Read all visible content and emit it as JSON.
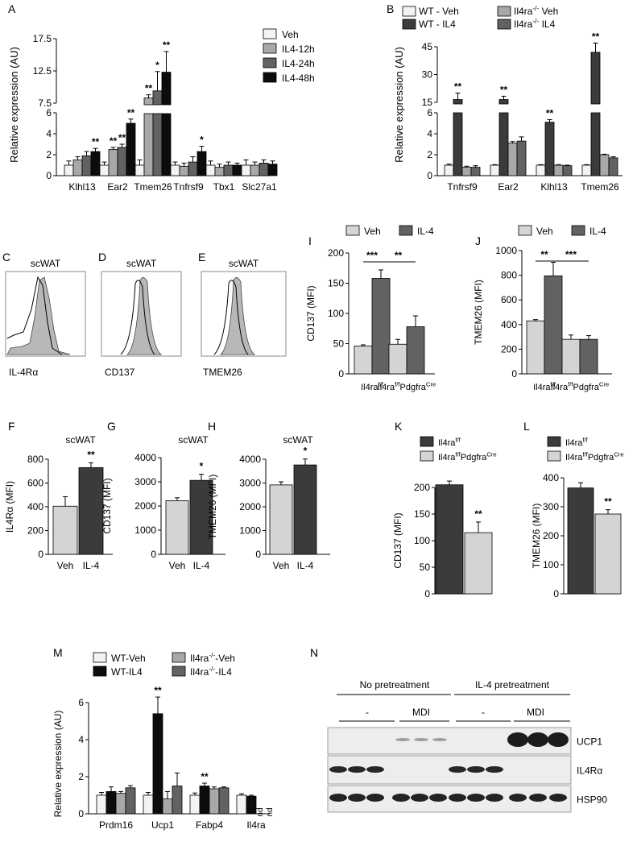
{
  "colors": {
    "white": "#f3f3f3",
    "light": "#d4d4d4",
    "mid": "#a8a8a8",
    "dark": "#626262",
    "black": "#0c0c0c",
    "darkbar": "#3b3b3b"
  },
  "chart_data": [
    {
      "id": "A",
      "type": "bar",
      "panel_label": "A",
      "ylabel": "Relative expression (AU)",
      "categories": [
        "Klhl13",
        "Ear2",
        "Tmem26",
        "Tnfrsf9",
        "Tbx1",
        "Slc27a1"
      ],
      "y_axis_break": {
        "lower_range": [
          0,
          6
        ],
        "upper_range": [
          7.5,
          17.5
        ]
      },
      "lower_ticks": [
        "0",
        "2",
        "4",
        "6"
      ],
      "upper_ticks": [
        "7.5",
        "12.5",
        "17.5"
      ],
      "legend_placement": "top-right",
      "series": [
        {
          "name": "Veh",
          "values": [
            1.0,
            1.0,
            1.0,
            1.0,
            1.0,
            1.0
          ],
          "errors": [
            0.4,
            0.3,
            0.5,
            0.3,
            0.4,
            0.5
          ]
        },
        {
          "name": "IL4-12h",
          "values": [
            1.5,
            2.5,
            8.3,
            0.9,
            0.8,
            1.0
          ],
          "errors": [
            0.3,
            0.2,
            0.5,
            0.3,
            0.3,
            0.3
          ]
        },
        {
          "name": "IL4-24h",
          "values": [
            1.9,
            2.7,
            9.4,
            1.3,
            1.0,
            1.2
          ],
          "errors": [
            0.4,
            0.3,
            3.0,
            0.5,
            0.3,
            0.3
          ]
        },
        {
          "name": "IL4-48h",
          "values": [
            2.3,
            5.0,
            12.3,
            2.3,
            1.0,
            1.1
          ],
          "errors": [
            0.3,
            0.4,
            3.2,
            0.5,
            0.2,
            0.3
          ]
        }
      ],
      "annotations": [
        {
          "category": "Klhl13",
          "series": "IL4-48h",
          "text": "**"
        },
        {
          "category": "Ear2",
          "series": "IL4-12h",
          "text": "**"
        },
        {
          "category": "Ear2",
          "series": "IL4-24h",
          "text": "**"
        },
        {
          "category": "Ear2",
          "series": "IL4-48h",
          "text": "**"
        },
        {
          "category": "Tmem26",
          "series": "IL4-12h",
          "text": "**"
        },
        {
          "category": "Tmem26",
          "series": "IL4-24h",
          "text": "*"
        },
        {
          "category": "Tmem26",
          "series": "IL4-48h",
          "text": "**"
        },
        {
          "category": "Tnfrsf9",
          "series": "IL4-48h",
          "text": "*"
        }
      ]
    },
    {
      "id": "B",
      "type": "bar",
      "panel_label": "B",
      "ylabel": "Relative expression (AU)",
      "categories": [
        "Tnfrsf9",
        "Ear2",
        "Klhl13",
        "Tmem26"
      ],
      "y_axis_break": {
        "lower_range": [
          0,
          6
        ],
        "upper_range": [
          15,
          45
        ]
      },
      "lower_ticks": [
        "0",
        "2",
        "4",
        "6"
      ],
      "upper_ticks": [
        "15",
        "30",
        "45"
      ],
      "legend_placement": "top",
      "legend_labels": [
        "WT - Veh",
        "WT - IL4",
        "Il4ra-/- Veh",
        "Il4ra-/- IL4"
      ],
      "series": [
        {
          "name": "WT - Veh",
          "values": [
            1.0,
            1.0,
            1.0,
            1.0
          ],
          "errors": [
            0.1,
            0.05,
            0.05,
            0.05
          ]
        },
        {
          "name": "WT - IL4",
          "values": [
            16.5,
            16.5,
            5.1,
            42.0
          ],
          "errors": [
            3.5,
            1.8,
            0.25,
            5.0
          ]
        },
        {
          "name": "Il4ra-/- Veh",
          "values": [
            0.8,
            3.1,
            1.0,
            2.0
          ],
          "errors": [
            0.1,
            0.15,
            0.05,
            0.05
          ]
        },
        {
          "name": "Il4ra-/- IL4",
          "values": [
            0.8,
            3.3,
            0.95,
            1.7
          ],
          "errors": [
            0.15,
            0.4,
            0.05,
            0.1
          ]
        }
      ],
      "annotations": [
        {
          "category": "Tnfrsf9",
          "series": "WT - IL4",
          "text": "**"
        },
        {
          "category": "Ear2",
          "series": "WT - IL4",
          "text": "**"
        },
        {
          "category": "Klhl13",
          "series": "WT - IL4",
          "text": "**"
        },
        {
          "category": "Tmem26",
          "series": "WT - IL4",
          "text": "**"
        }
      ]
    },
    {
      "id": "I",
      "type": "bar",
      "panel_label": "I",
      "ylabel": "CD137 (MFI)",
      "ylim": [
        0,
        200
      ],
      "ticks": [
        "0",
        "50",
        "100",
        "150",
        "200"
      ],
      "groups": [
        "Il4ra",
        "Il4raPdgfra"
      ],
      "group_labels": {
        "Il4ra": "Il4ra",
        "Il4ra_sup": "f/f",
        "Il4raPdgfra_a": "Il4ra",
        "Il4raPdgfra_sup": "f/f",
        "Il4raPdgfra_b": "Pdgfra",
        "Il4raPdgfra_sup2": "Cre"
      },
      "legend_labels": [
        "Veh",
        "IL-4"
      ],
      "series": [
        {
          "name": "Veh",
          "values": [
            46,
            49
          ],
          "errors": [
            2,
            8
          ]
        },
        {
          "name": "IL-4",
          "values": [
            158,
            78
          ],
          "errors": [
            14,
            18
          ]
        }
      ],
      "brackets": [
        {
          "text": "***"
        },
        {
          "text": "**"
        }
      ]
    },
    {
      "id": "J",
      "type": "bar",
      "panel_label": "J",
      "ylabel": "TMEM26 (MFI)",
      "ylim": [
        0,
        1000
      ],
      "ticks": [
        "0",
        "200",
        "400",
        "600",
        "800",
        "1000"
      ],
      "legend_labels": [
        "Veh",
        "IL-4"
      ],
      "series": [
        {
          "name": "Veh",
          "values": [
            430,
            280
          ],
          "errors": [
            10,
            35
          ]
        },
        {
          "name": "IL-4",
          "values": [
            795,
            280
          ],
          "errors": [
            110,
            30
          ]
        }
      ],
      "brackets": [
        {
          "text": "**"
        },
        {
          "text": "***"
        }
      ]
    },
    {
      "id": "F",
      "type": "bar",
      "panel_label": "F",
      "title": "scWAT",
      "ylabel": "IL4Rα (MFI)",
      "ylim": [
        0,
        800
      ],
      "ticks": [
        "0",
        "200",
        "400",
        "600",
        "800"
      ],
      "categories": [
        "Veh",
        "IL-4"
      ],
      "values": [
        405,
        730
      ],
      "errors": [
        80,
        40
      ],
      "sig": "**"
    },
    {
      "id": "G",
      "type": "bar",
      "panel_label": "G",
      "title": "scWAT",
      "ylabel": "CD137 (MFI)",
      "ylim": [
        0,
        4000
      ],
      "ticks": [
        "0",
        "1000",
        "2000",
        "3000",
        "4000"
      ],
      "categories": [
        "Veh",
        "IL-4"
      ],
      "values": [
        2220,
        3060
      ],
      "errors": [
        120,
        250
      ],
      "sig": "*"
    },
    {
      "id": "H",
      "type": "bar",
      "panel_label": "H",
      "title": "scWAT",
      "ylabel": "TMEM26 (MFI)",
      "ylim": [
        0,
        4000
      ],
      "ticks": [
        "0",
        "1000",
        "2000",
        "3000",
        "4000"
      ],
      "categories": [
        "Veh",
        "IL-4"
      ],
      "values": [
        2920,
        3760
      ],
      "errors": [
        130,
        250
      ],
      "sig": "*"
    },
    {
      "id": "K",
      "type": "bar",
      "panel_label": "K",
      "ylabel": "CD137 (MFI)",
      "ylim": [
        0,
        200
      ],
      "ticks": [
        "0",
        "50",
        "100",
        "150",
        "200"
      ],
      "legend_labels": [
        "Il4ra",
        "Il4raPdgfra"
      ],
      "values": [
        205,
        115
      ],
      "errors": [
        7,
        20
      ],
      "sig": "**"
    },
    {
      "id": "L",
      "type": "bar",
      "panel_label": "L",
      "ylabel": "TMEM26 (MFI)",
      "ylim": [
        0,
        400
      ],
      "ticks": [
        "0",
        "100",
        "200",
        "300",
        "400"
      ],
      "legend_labels": [
        "Il4ra",
        "Il4raPdgfra"
      ],
      "values": [
        365,
        275
      ],
      "errors": [
        18,
        15
      ],
      "sig": "**"
    },
    {
      "id": "M",
      "type": "bar",
      "panel_label": "M",
      "ylabel": "Relative expression (AU)",
      "ylim": [
        0,
        6
      ],
      "ticks": [
        "0",
        "2",
        "4",
        "6"
      ],
      "categories": [
        "Prdm16",
        "Ucp1",
        "Fabp4",
        "Il4ra"
      ],
      "legend_labels": [
        "WT-Veh",
        "WT-IL4",
        "Il4ra-/--Veh",
        "Il4ra-/--IL4"
      ],
      "series": [
        {
          "name": "WT-Veh",
          "values": [
            1.0,
            1.0,
            1.0,
            1.0
          ],
          "errors": [
            0.15,
            0.15,
            0.12,
            0.08
          ]
        },
        {
          "name": "WT-IL4",
          "values": [
            1.2,
            5.4,
            1.5,
            0.95
          ],
          "errors": [
            0.25,
            0.9,
            0.15,
            0.05
          ]
        },
        {
          "name": "Il4ra-/--Veh",
          "values": [
            1.1,
            0.8,
            1.35,
            null
          ],
          "errors": [
            0.1,
            0.4,
            0.1,
            null
          ]
        },
        {
          "name": "Il4ra-/--IL4",
          "values": [
            1.4,
            1.5,
            1.4,
            null
          ],
          "errors": [
            0.12,
            0.7,
            0.05,
            null
          ]
        }
      ],
      "nd_label": "nd",
      "annotations": [
        {
          "category": "Ucp1",
          "series": "WT-IL4",
          "text": "**"
        },
        {
          "category": "Fabp4",
          "series": "WT-IL4",
          "text": "**"
        }
      ]
    }
  ],
  "flow": {
    "C": {
      "label": "C",
      "title": "scWAT",
      "marker": "IL-4Rα"
    },
    "D": {
      "label": "D",
      "title": "scWAT",
      "marker": "CD137"
    },
    "E": {
      "label": "E",
      "title": "scWAT",
      "marker": "TMEM26"
    }
  },
  "blot": {
    "label": "N",
    "header_left": "No pretreatment",
    "header_right": "IL-4 pretreatment",
    "sub_minus": "-",
    "sub_mdi": "MDI",
    "rows": [
      "UCP1",
      "IL4Rα",
      "HSP90"
    ]
  },
  "text": {
    "sup_ff": "f/f",
    "sup_cre": "Cre",
    "sup_ko": "-/-",
    "il4ra": "Il4ra",
    "pdgfra": "Pdgfra",
    "legB": [
      "WT - Veh",
      "WT - IL4",
      "Il4ra",
      " Veh",
      " IL4"
    ],
    "legM": [
      "WT-Veh",
      "WT-IL4",
      "Il4ra",
      "-Veh",
      "-IL4"
    ]
  }
}
